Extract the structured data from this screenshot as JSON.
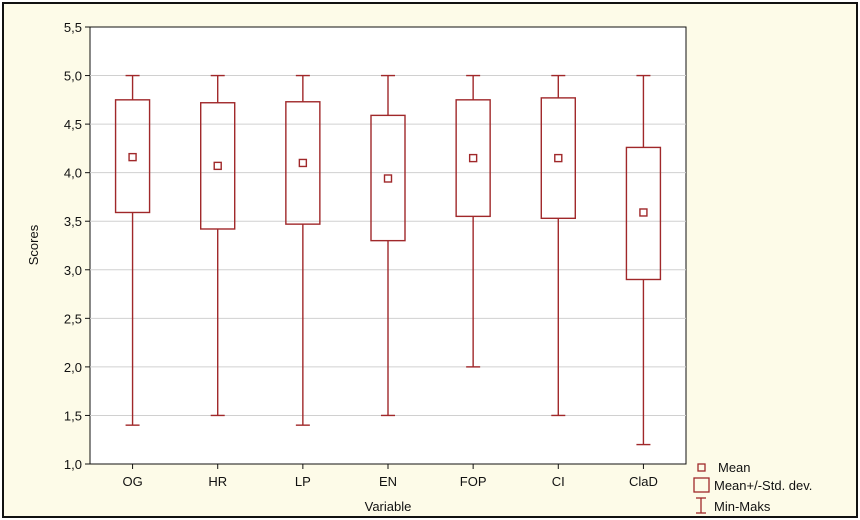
{
  "chart_data": {
    "type": "boxplot",
    "xlabel": "Variable",
    "ylabel": "Scores",
    "ylim": [
      1.0,
      5.5
    ],
    "yticks": [
      "1,0",
      "1,5",
      "2,0",
      "2,5",
      "3,0",
      "3,5",
      "4,0",
      "4,5",
      "5,0",
      "5,5"
    ],
    "grid": true,
    "legend_position": "bottom-right",
    "legend": [
      "Mean",
      "Mean+/-Std. dev.",
      "Min-Maks"
    ],
    "series_color": "#a0282a",
    "categories": [
      "OG",
      "HR",
      "LP",
      "EN",
      "FOP",
      "CI",
      "ClaD"
    ],
    "mean": [
      4.16,
      4.07,
      4.1,
      3.94,
      4.15,
      4.15,
      3.59
    ],
    "mean_plus_sd": [
      4.75,
      4.72,
      4.73,
      4.59,
      4.75,
      4.77,
      4.26
    ],
    "mean_minus_sd": [
      3.59,
      3.42,
      3.47,
      3.3,
      3.55,
      3.53,
      2.9
    ],
    "min": [
      1.4,
      1.5,
      1.4,
      1.5,
      2.0,
      1.5,
      1.2
    ],
    "max": [
      5.0,
      5.0,
      5.0,
      5.0,
      5.0,
      5.0,
      5.0
    ]
  }
}
